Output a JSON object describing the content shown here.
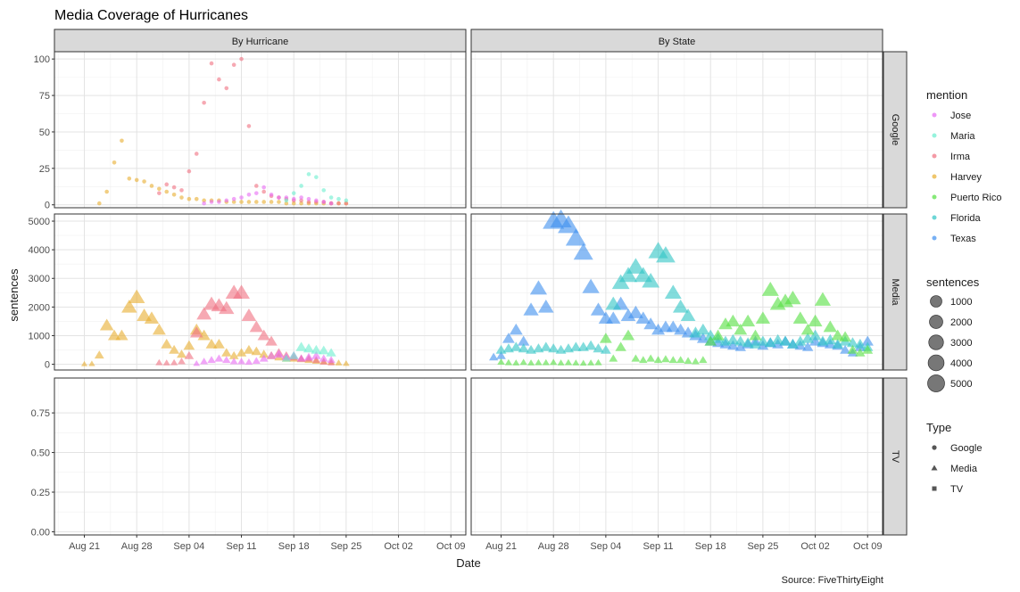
{
  "chart_data": {
    "type": "scatter",
    "title": "Media Coverage of Hurricanes",
    "xlabel": "Date",
    "ylabel": "sentences",
    "caption": "Source: FiveThirtyEight",
    "grid": true,
    "legend_placement": "right",
    "x_axis": {
      "ticks": [
        "2017-08-21",
        "2017-08-28",
        "2017-09-04",
        "2017-09-11",
        "2017-09-18",
        "2017-09-25",
        "2017-10-02",
        "2017-10-09"
      ],
      "tick_labels": [
        "Aug 21",
        "Aug 28",
        "Sep 04",
        "Sep 11",
        "Sep 18",
        "Sep 25",
        "Oct 02",
        "Oct 09"
      ],
      "range": [
        "2017-08-17",
        "2017-10-11"
      ]
    },
    "facet_columns": [
      "By Hurricane",
      "By State"
    ],
    "facet_rows": [
      "Google",
      "Media",
      "TV"
    ],
    "y_axes": {
      "Google": {
        "ticks": [
          0,
          25,
          50,
          75,
          100
        ],
        "tick_labels": [
          "0",
          "25",
          "50",
          "75",
          "100"
        ],
        "range": [
          -2,
          105
        ]
      },
      "Media": {
        "ticks": [
          0,
          1000,
          2000,
          3000,
          4000,
          5000
        ],
        "tick_labels": [
          "0",
          "1000",
          "2000",
          "3000",
          "4000",
          "5000"
        ],
        "range": [
          -200,
          5250
        ]
      },
      "TV": {
        "ticks": [
          0,
          0.25,
          0.5,
          0.75
        ],
        "tick_labels": [
          "0.00",
          "0.25",
          "0.50",
          "0.75"
        ],
        "range": [
          -0.02,
          0.97
        ]
      }
    },
    "legend": {
      "mention": {
        "title": "mention",
        "items": [
          {
            "name": "Jose",
            "color": "#E76BF3"
          },
          {
            "name": "Maria",
            "color": "#6AEECF"
          },
          {
            "name": "Irma",
            "color": "#F06F80"
          },
          {
            "name": "Harvey",
            "color": "#E8AE2E"
          },
          {
            "name": "Puerto Rico",
            "color": "#53E03F"
          },
          {
            "name": "Florida",
            "color": "#2FC4C4"
          },
          {
            "name": "Texas",
            "color": "#3D8FEF"
          }
        ]
      },
      "sentences": {
        "title": "sentences",
        "values": [
          1000,
          2000,
          3000,
          4000,
          5000
        ],
        "labels": [
          "1000",
          "2000",
          "3000",
          "4000",
          "5000"
        ]
      },
      "type": {
        "title": "Type",
        "items": [
          {
            "name": "Google",
            "shape": "circle"
          },
          {
            "name": "Media",
            "shape": "triangle"
          },
          {
            "name": "TV",
            "shape": "square"
          }
        ]
      }
    },
    "series": [
      {
        "name": "Harvey",
        "facet": "By Hurricane",
        "row": "Google",
        "shape": "circle",
        "x": [
          "2017-08-23",
          "2017-08-24",
          "2017-08-25",
          "2017-08-26",
          "2017-08-27",
          "2017-08-28",
          "2017-08-29",
          "2017-08-30",
          "2017-08-31",
          "2017-09-01",
          "2017-09-02",
          "2017-09-03",
          "2017-09-04",
          "2017-09-05",
          "2017-09-06",
          "2017-09-07",
          "2017-09-08",
          "2017-09-09",
          "2017-09-10",
          "2017-09-11",
          "2017-09-12",
          "2017-09-13",
          "2017-09-14",
          "2017-09-15",
          "2017-09-16",
          "2017-09-17",
          "2017-09-18",
          "2017-09-19",
          "2017-09-20",
          "2017-09-21",
          "2017-09-22",
          "2017-09-23",
          "2017-09-24",
          "2017-09-25"
        ],
        "y": [
          1,
          9,
          29,
          44,
          18,
          17,
          16,
          13,
          11,
          9,
          7,
          5,
          4,
          4,
          3,
          3,
          3,
          2,
          2,
          2,
          2,
          2,
          2,
          2,
          2,
          1,
          1,
          1,
          1,
          1,
          1,
          1,
          1,
          1
        ]
      },
      {
        "name": "Irma",
        "facet": "By Hurricane",
        "row": "Google",
        "shape": "circle",
        "x": [
          "2017-08-31",
          "2017-09-01",
          "2017-09-02",
          "2017-09-03",
          "2017-09-04",
          "2017-09-05",
          "2017-09-06",
          "2017-09-07",
          "2017-09-08",
          "2017-09-09",
          "2017-09-10",
          "2017-09-11",
          "2017-09-12",
          "2017-09-13",
          "2017-09-14",
          "2017-09-15",
          "2017-09-16",
          "2017-09-17",
          "2017-09-18",
          "2017-09-19",
          "2017-09-20",
          "2017-09-21",
          "2017-09-22",
          "2017-09-23",
          "2017-09-24",
          "2017-09-25"
        ],
        "y": [
          8,
          14,
          12,
          10,
          23,
          35,
          70,
          97,
          86,
          80,
          96,
          100,
          54,
          13,
          9,
          6,
          5,
          4,
          3,
          3,
          2,
          2,
          2,
          1,
          1,
          1
        ]
      },
      {
        "name": "Jose",
        "facet": "By Hurricane",
        "row": "Google",
        "shape": "circle",
        "x": [
          "2017-09-06",
          "2017-09-07",
          "2017-09-08",
          "2017-09-09",
          "2017-09-10",
          "2017-09-11",
          "2017-09-12",
          "2017-09-13",
          "2017-09-14",
          "2017-09-15",
          "2017-09-16",
          "2017-09-17",
          "2017-09-18",
          "2017-09-19",
          "2017-09-20",
          "2017-09-21",
          "2017-09-22",
          "2017-09-23"
        ],
        "y": [
          1,
          2,
          2,
          3,
          4,
          5,
          7,
          8,
          12,
          7,
          5,
          5,
          4,
          5,
          4,
          3,
          2,
          1
        ]
      },
      {
        "name": "Maria",
        "facet": "By Hurricane",
        "row": "Google",
        "shape": "circle",
        "x": [
          "2017-09-17",
          "2017-09-18",
          "2017-09-19",
          "2017-09-20",
          "2017-09-21",
          "2017-09-22",
          "2017-09-23",
          "2017-09-24",
          "2017-09-25"
        ],
        "y": [
          3,
          8,
          13,
          21,
          19,
          10,
          5,
          4,
          3
        ]
      },
      {
        "name": "Harvey",
        "facet": "By Hurricane",
        "row": "Media",
        "shape": "triangle",
        "x": [
          "2017-08-21",
          "2017-08-22",
          "2017-08-23",
          "2017-08-24",
          "2017-08-25",
          "2017-08-26",
          "2017-08-27",
          "2017-08-28",
          "2017-08-29",
          "2017-08-30",
          "2017-08-31",
          "2017-09-01",
          "2017-09-02",
          "2017-09-03",
          "2017-09-04",
          "2017-09-05",
          "2017-09-06",
          "2017-09-07",
          "2017-09-08",
          "2017-09-09",
          "2017-09-10",
          "2017-09-11",
          "2017-09-12",
          "2017-09-13",
          "2017-09-14",
          "2017-09-15",
          "2017-09-16",
          "2017-09-17",
          "2017-09-18",
          "2017-09-19",
          "2017-09-20",
          "2017-09-21",
          "2017-09-22",
          "2017-09-23",
          "2017-09-24",
          "2017-09-25"
        ],
        "y": [
          10,
          20,
          320,
          1360,
          1000,
          1000,
          2000,
          2340,
          1700,
          1600,
          1200,
          700,
          500,
          350,
          650,
          1200,
          1000,
          700,
          700,
          400,
          300,
          400,
          500,
          450,
          350,
          300,
          250,
          200,
          200,
          180,
          150,
          120,
          100,
          80,
          50,
          30
        ]
      },
      {
        "name": "Irma",
        "facet": "By Hurricane",
        "row": "Media",
        "shape": "triangle",
        "x": [
          "2017-08-31",
          "2017-09-01",
          "2017-09-02",
          "2017-09-03",
          "2017-09-04",
          "2017-09-05",
          "2017-09-06",
          "2017-09-07",
          "2017-09-08",
          "2017-09-09",
          "2017-09-10",
          "2017-09-11",
          "2017-09-12",
          "2017-09-13",
          "2017-09-14",
          "2017-09-15",
          "2017-09-16",
          "2017-09-17",
          "2017-09-18",
          "2017-09-19",
          "2017-09-20",
          "2017-09-21",
          "2017-09-22",
          "2017-09-23"
        ],
        "y": [
          60,
          50,
          60,
          100,
          300,
          1100,
          1750,
          2100,
          2050,
          1950,
          2500,
          2500,
          1700,
          1300,
          1000,
          800,
          400,
          300,
          250,
          200,
          200,
          150,
          80,
          50
        ]
      },
      {
        "name": "Jose",
        "facet": "By Hurricane",
        "row": "Media",
        "shape": "triangle",
        "x": [
          "2017-09-05",
          "2017-09-06",
          "2017-09-07",
          "2017-09-08",
          "2017-09-09",
          "2017-09-10",
          "2017-09-11",
          "2017-09-12",
          "2017-09-13",
          "2017-09-14",
          "2017-09-15",
          "2017-09-16",
          "2017-09-17",
          "2017-09-18",
          "2017-09-19",
          "2017-09-20",
          "2017-09-21",
          "2017-09-22",
          "2017-09-23"
        ],
        "y": [
          30,
          100,
          150,
          200,
          150,
          100,
          100,
          80,
          120,
          200,
          300,
          350,
          250,
          300,
          200,
          250,
          300,
          200,
          150
        ]
      },
      {
        "name": "Maria",
        "facet": "By Hurricane",
        "row": "Media",
        "shape": "triangle",
        "x": [
          "2017-09-17",
          "2017-09-18",
          "2017-09-19",
          "2017-09-20",
          "2017-09-21",
          "2017-09-22",
          "2017-09-23"
        ],
        "y": [
          200,
          300,
          600,
          550,
          500,
          480,
          400
        ]
      },
      {
        "name": "Texas",
        "facet": "By State",
        "row": "Media",
        "shape": "triangle",
        "x": [
          "2017-08-20",
          "2017-08-21",
          "2017-08-22",
          "2017-08-23",
          "2017-08-24",
          "2017-08-25",
          "2017-08-26",
          "2017-08-27",
          "2017-08-28",
          "2017-08-29",
          "2017-08-30",
          "2017-08-31",
          "2017-09-01",
          "2017-09-02",
          "2017-09-03",
          "2017-09-04",
          "2017-09-05",
          "2017-09-06",
          "2017-09-07",
          "2017-09-08",
          "2017-09-09",
          "2017-09-10",
          "2017-09-11",
          "2017-09-12",
          "2017-09-13",
          "2017-09-14",
          "2017-09-15",
          "2017-09-16",
          "2017-09-17",
          "2017-09-18",
          "2017-09-19",
          "2017-09-20",
          "2017-09-21",
          "2017-09-22",
          "2017-09-23",
          "2017-09-24",
          "2017-09-25",
          "2017-09-26",
          "2017-09-27",
          "2017-09-28",
          "2017-09-29",
          "2017-09-30",
          "2017-10-01",
          "2017-10-02",
          "2017-10-03",
          "2017-10-04",
          "2017-10-05",
          "2017-10-06",
          "2017-10-07",
          "2017-10-08",
          "2017-10-09"
        ],
        "y": [
          250,
          300,
          900,
          1200,
          800,
          1900,
          2650,
          2000,
          5000,
          5050,
          4850,
          4400,
          3900,
          2700,
          1900,
          1600,
          1600,
          2100,
          1700,
          1800,
          1600,
          1400,
          1200,
          1300,
          1300,
          1200,
          1100,
          1000,
          900,
          800,
          750,
          700,
          650,
          600,
          700,
          800,
          650,
          750,
          700,
          800,
          700,
          650,
          600,
          800,
          750,
          700,
          650,
          500,
          400,
          600,
          800
        ]
      },
      {
        "name": "Florida",
        "facet": "By State",
        "row": "Media",
        "shape": "triangle",
        "x": [
          "2017-08-21",
          "2017-08-22",
          "2017-08-23",
          "2017-08-24",
          "2017-08-25",
          "2017-08-26",
          "2017-08-27",
          "2017-08-28",
          "2017-08-29",
          "2017-08-30",
          "2017-08-31",
          "2017-09-01",
          "2017-09-02",
          "2017-09-03",
          "2017-09-04",
          "2017-09-05",
          "2017-09-06",
          "2017-09-07",
          "2017-09-08",
          "2017-09-09",
          "2017-09-10",
          "2017-09-11",
          "2017-09-12",
          "2017-09-13",
          "2017-09-14",
          "2017-09-15",
          "2017-09-16",
          "2017-09-17",
          "2017-09-18",
          "2017-09-19",
          "2017-09-20",
          "2017-09-21",
          "2017-09-22",
          "2017-09-23",
          "2017-09-24",
          "2017-09-25",
          "2017-09-26",
          "2017-09-27",
          "2017-09-28",
          "2017-09-29",
          "2017-09-30",
          "2017-10-01",
          "2017-10-02",
          "2017-10-03",
          "2017-10-04",
          "2017-10-05",
          "2017-10-06",
          "2017-10-07",
          "2017-10-08",
          "2017-10-09"
        ],
        "y": [
          500,
          550,
          600,
          550,
          500,
          550,
          600,
          550,
          500,
          550,
          600,
          600,
          650,
          550,
          500,
          2100,
          2850,
          3100,
          3400,
          3100,
          2900,
          3950,
          3800,
          2500,
          2000,
          1700,
          1100,
          1200,
          1000,
          900,
          800,
          850,
          800,
          750,
          700,
          800,
          750,
          850,
          800,
          700,
          800,
          900,
          1000,
          800,
          850,
          700,
          800,
          750,
          700,
          600
        ]
      },
      {
        "name": "Puerto Rico",
        "facet": "By State",
        "row": "Media",
        "shape": "triangle",
        "x": [
          "2017-08-21",
          "2017-08-22",
          "2017-08-23",
          "2017-08-24",
          "2017-08-25",
          "2017-08-26",
          "2017-08-27",
          "2017-08-28",
          "2017-08-29",
          "2017-08-30",
          "2017-08-31",
          "2017-09-01",
          "2017-09-02",
          "2017-09-03",
          "2017-09-04",
          "2017-09-05",
          "2017-09-06",
          "2017-09-07",
          "2017-09-08",
          "2017-09-09",
          "2017-09-10",
          "2017-09-11",
          "2017-09-12",
          "2017-09-13",
          "2017-09-14",
          "2017-09-15",
          "2017-09-16",
          "2017-09-17",
          "2017-09-18",
          "2017-09-19",
          "2017-09-20",
          "2017-09-21",
          "2017-09-22",
          "2017-09-23",
          "2017-09-24",
          "2017-09-25",
          "2017-09-26",
          "2017-09-27",
          "2017-09-28",
          "2017-09-29",
          "2017-09-30",
          "2017-10-01",
          "2017-10-02",
          "2017-10-03",
          "2017-10-04",
          "2017-10-05",
          "2017-10-06",
          "2017-10-07",
          "2017-10-08",
          "2017-10-09"
        ],
        "y": [
          80,
          60,
          50,
          70,
          50,
          60,
          60,
          70,
          50,
          60,
          50,
          40,
          50,
          60,
          900,
          200,
          600,
          1000,
          200,
          150,
          200,
          150,
          180,
          150,
          150,
          120,
          100,
          150,
          800,
          1000,
          1400,
          1500,
          1200,
          1500,
          1000,
          1600,
          2600,
          2100,
          2200,
          2300,
          1600,
          1200,
          1500,
          2250,
          1300,
          1000,
          950,
          500,
          400,
          500
        ]
      }
    ]
  }
}
